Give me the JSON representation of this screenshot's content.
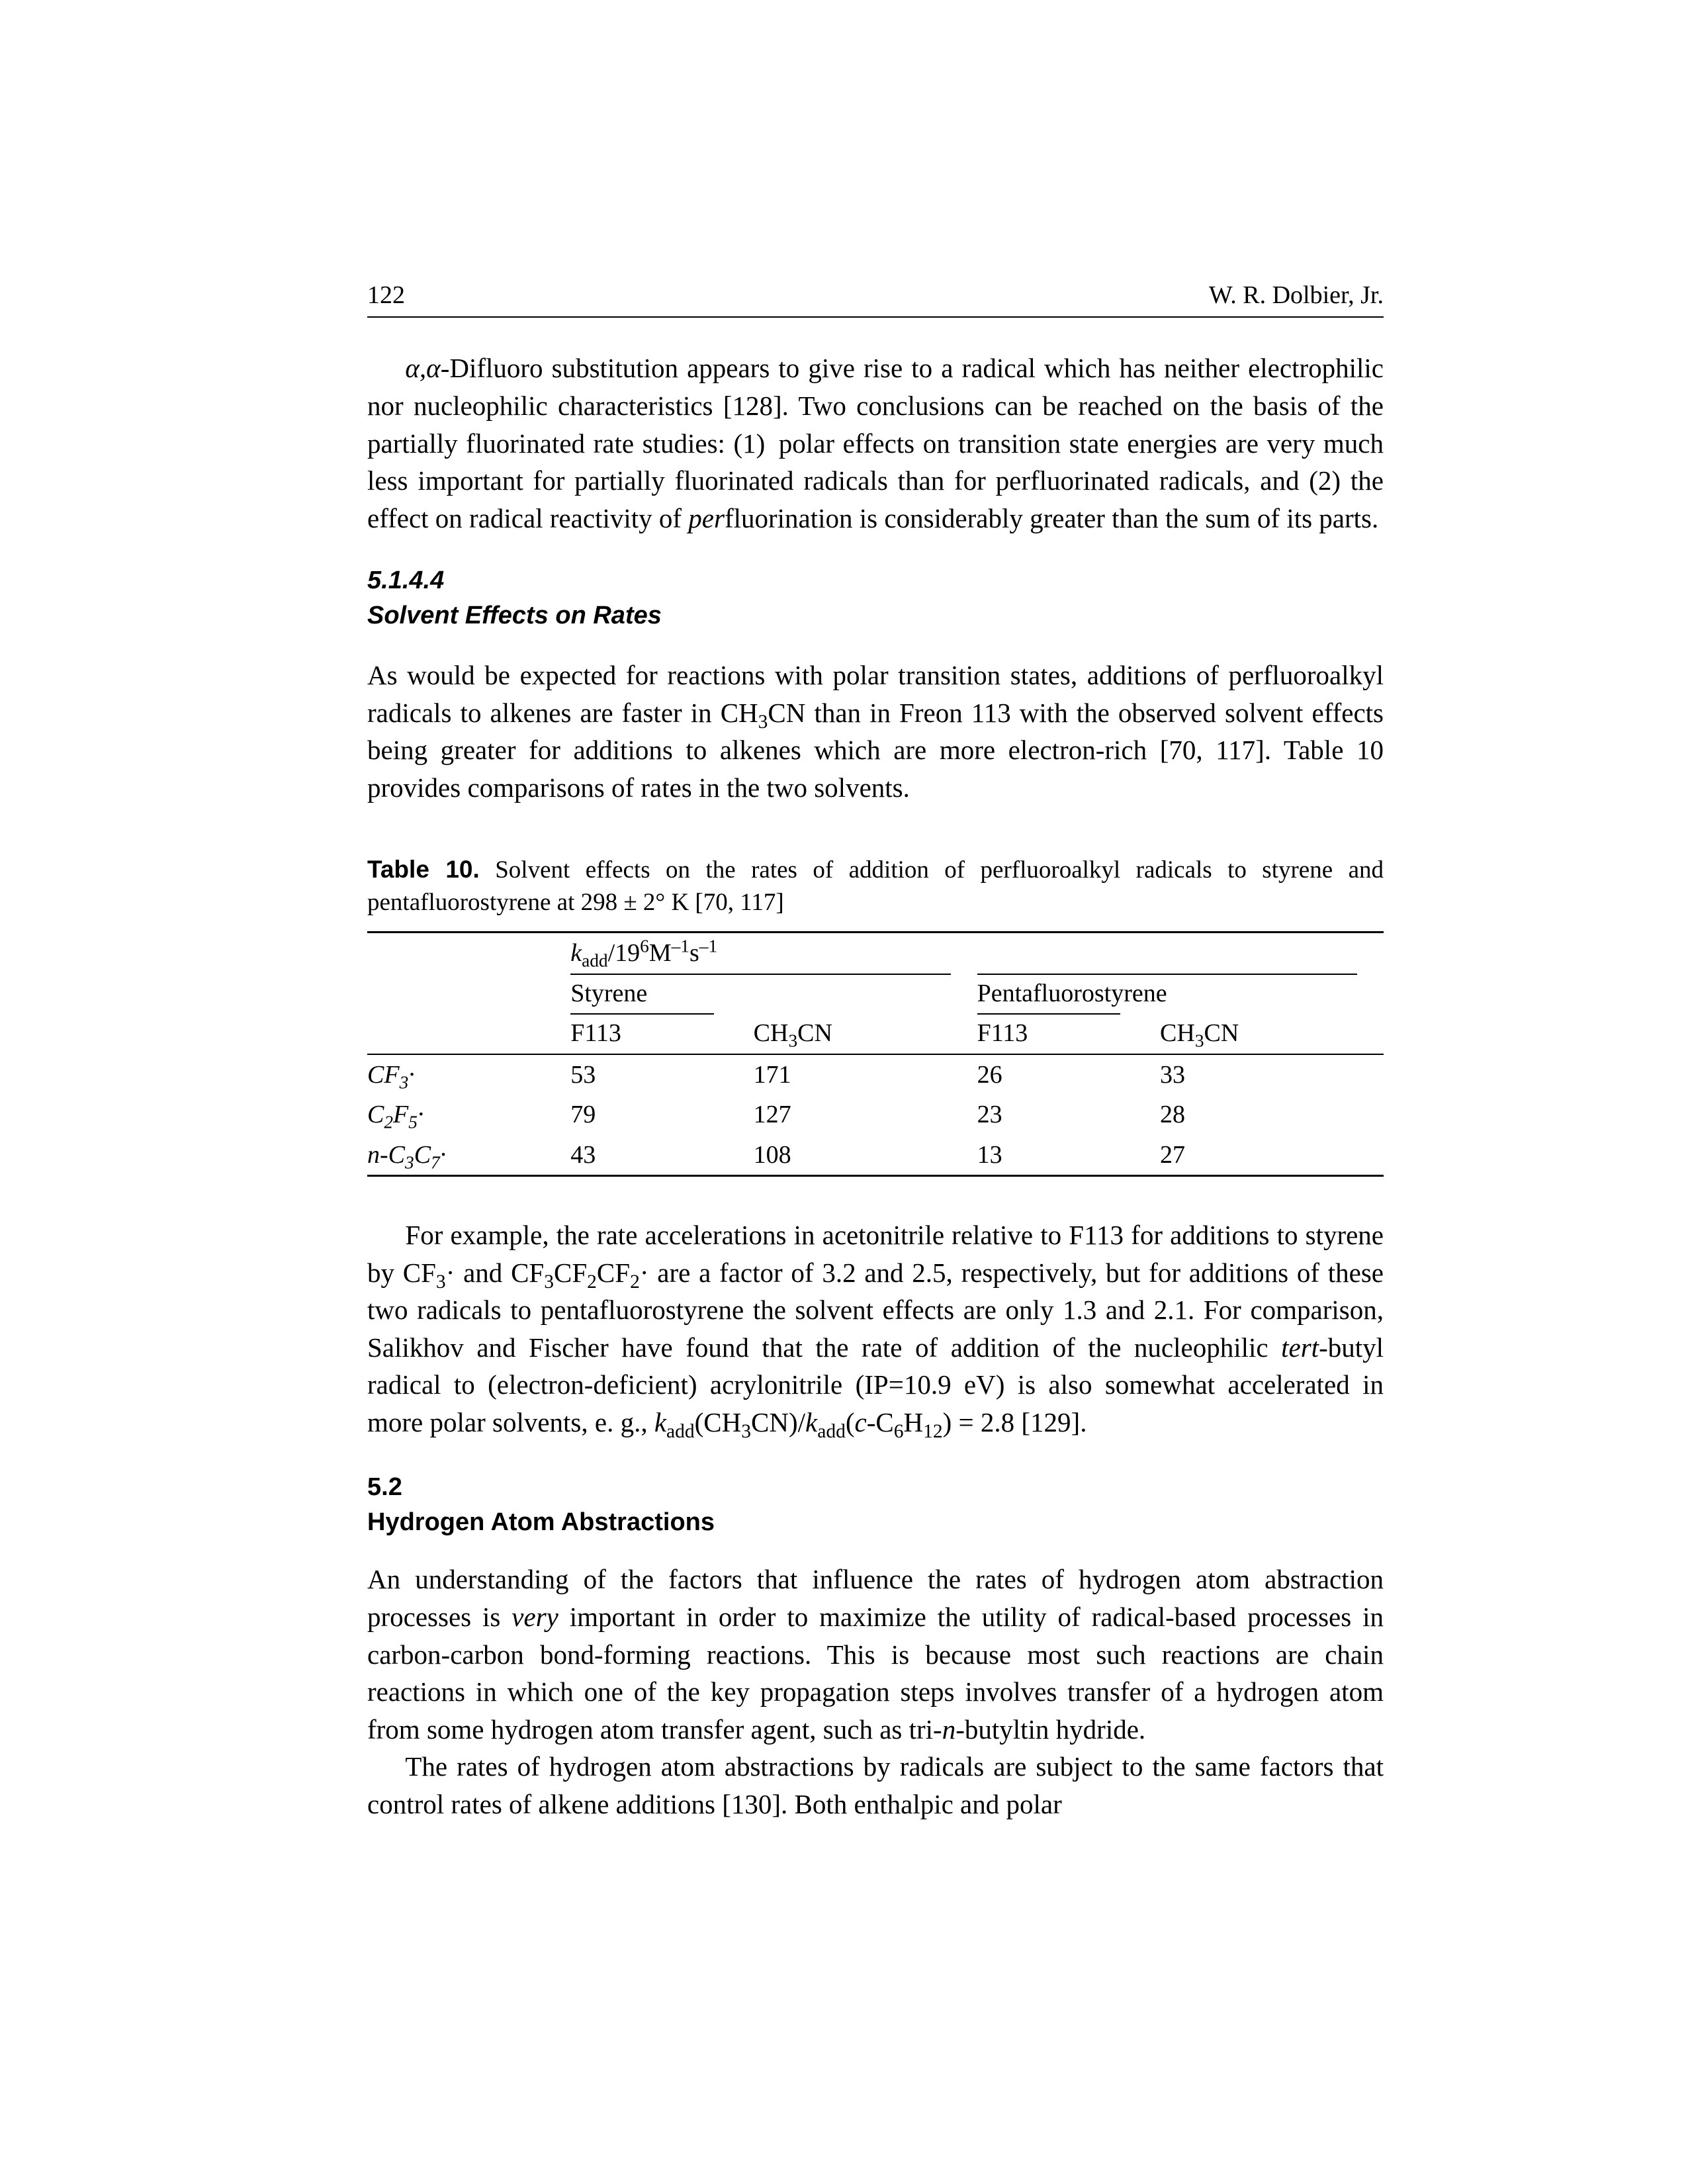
{
  "header": {
    "page_number": "122",
    "author": "W. R. Dolbier, Jr."
  },
  "para1_html": "<span class=\"ital\">α,α</span>-Difluoro substitution appears to give rise to a radical which has neither electrophilic nor nucleophilic characteristics [128]. Two conclusions can be reached on the basis of the partially fluorinated rate studies: (1) polar effects on transition state energies are very much less important for partially fluorinated radicals than for perfluorinated radicals, and (2) the effect on radical reactivity of <span class=\"ital\">per</span>fluorination is considerably greater than the sum of its parts.",
  "section_5_1_4_4": {
    "number": "5.1.4.4",
    "title": "Solvent Effects on Rates"
  },
  "para2_html": "As would be expected for reactions with polar transition states, additions of perfluoroalkyl radicals to alkenes are faster in CH<sub>3</sub>CN than in Freon 113 with the observed solvent effects being greater for additions to alkenes which are more electron-rich [70, 117]. Table 10 provides comparisons of rates in the two solvents.",
  "table10": {
    "label": "Table 10.",
    "caption_html": "Solvent effects on the rates of addition of perfluoroalkyl radicals to styrene and pentafluorostyrene at 298 ± 2° K [70, 117]",
    "kheader_html": "<span class=\"ital\">k</span><sub>add</sub>/19<sup>6</sup>M<sup>–1</sup>s<sup>–1</sup>",
    "group_headers": [
      "Styrene",
      "Pentafluorostyrene"
    ],
    "sub_headers": [
      "F113",
      "CH3CN",
      "F113",
      "CH3CN"
    ],
    "rows": [
      {
        "label_html": "<span class=\"ital\">CF<sub>3</sub>·</span>",
        "v": [
          "53",
          "171",
          "26",
          "33"
        ]
      },
      {
        "label_html": "<span class=\"ital\">C<sub>2</sub>F<sub>5</sub>·</span>",
        "v": [
          "79",
          "127",
          "23",
          "28"
        ]
      },
      {
        "label_html": "<span class=\"ital\">n-C<sub>3</sub>C<sub>7</sub>·</span>",
        "v": [
          "43",
          "108",
          "13",
          "27"
        ]
      }
    ]
  },
  "para3_html": "For example, the rate accelerations in acetonitrile relative to F113 for additions to styrene by CF<sub>3</sub>· and CF<sub>3</sub>CF<sub>2</sub>CF<sub>2</sub>· are a factor of 3.2 and 2.5, respectively, but for additions of these two radicals to pentafluorostyrene the solvent effects are only 1.3 and 2.1. For comparison, Salikhov and Fischer have found that the rate of addition of the nucleophilic <span class=\"ital\">tert</span>-butyl radical to (electron-deficient) acrylonitrile (IP=10.9 eV) is also somewhat accelerated in more polar solvents, e. g., <span class=\"ital\">k</span><sub>add</sub>(CH<sub>3</sub>CN)/<span class=\"ital\">k</span><sub>add</sub>(<span class=\"ital\">c</span>-C<sub>6</sub>H<sub>12</sub>) = 2.8 [129].",
  "section_5_2": {
    "number": "5.2",
    "title": "Hydrogen Atom Abstractions"
  },
  "para4_html": "An understanding of the factors that influence the rates of hydrogen atom abstraction processes is <span class=\"ital\">very</span> important in order to maximize the utility of radical-based processes in carbon-carbon bond-forming reactions. This is because most such reactions are chain reactions in which one of the key propagation steps involves transfer of a hydrogen atom from some hydrogen atom transfer agent, such as tri-<span class=\"ital\">n</span>-butyltin hydride.",
  "para5_html": "The rates of hydrogen atom abstractions by radicals are subject to the same factors that control rates of alkene additions [130]. Both enthalpic and polar"
}
